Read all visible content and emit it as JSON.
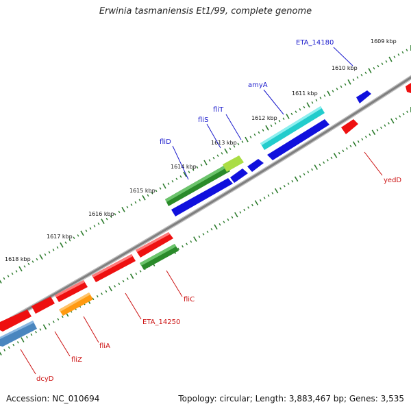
{
  "title": "Erwinia tasmaniensis Et1/99, complete genome",
  "footer": {
    "accession": "Accession: NC_010694",
    "summary": "Topology: circular; Length: 3,883,467 bp; Genes: 3,535"
  },
  "ruler_labels": [
    "1609 kbp",
    "1610 kbp",
    "1611 kbp",
    "1612 kbp",
    "1613 kbp",
    "1614 kbp",
    "1615 kbp",
    "1616 kbp",
    "1617 kbp",
    "1618 kbp"
  ],
  "gene_labels_forward": [
    "ETA_14180",
    "amyA",
    "fliT",
    "fliS",
    "fliD"
  ],
  "gene_labels_reverse": [
    "yedD",
    "fliC",
    "ETA_14250",
    "fliA",
    "fliZ",
    "dcyD"
  ],
  "colors": {
    "forward_label": "#1a1acc",
    "reverse_label": "#cc1111",
    "backbone": "#7f7f7f",
    "tick": "#2a7a2a",
    "blue": "#1010dd",
    "red": "#ee1010",
    "cyan": "#22cccc",
    "dark_green": "#2a8a2a",
    "light_green": "#aadd44",
    "orange": "#ff9a10",
    "steel_blue": "#4a86bf"
  }
}
